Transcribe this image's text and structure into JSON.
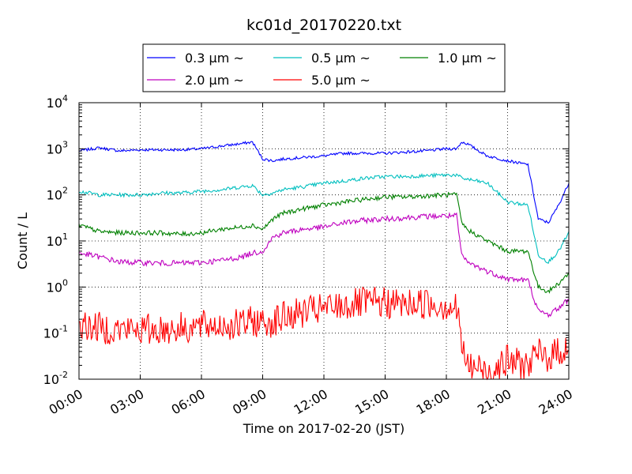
{
  "chart_data": {
    "type": "line",
    "title": "kc01d_20170220.txt",
    "xlabel": "Time on 2017-02-20 (JST)",
    "ylabel": "Count / L",
    "xlim": [
      "00:00",
      "24:00"
    ],
    "ylim": [
      0.01,
      10000
    ],
    "yscale": "log",
    "grid": true,
    "legend_position": "top-center",
    "x_ticks": [
      "00:00",
      "03:00",
      "06:00",
      "09:00",
      "12:00",
      "15:00",
      "18:00",
      "21:00",
      "24:00"
    ],
    "y_ticks": [
      {
        "base": "10",
        "exp": "-2",
        "value": 0.01
      },
      {
        "base": "10",
        "exp": "-1",
        "value": 0.1
      },
      {
        "base": "10",
        "exp": "0",
        "value": 1
      },
      {
        "base": "10",
        "exp": "1",
        "value": 10
      },
      {
        "base": "10",
        "exp": "2",
        "value": 100
      },
      {
        "base": "10",
        "exp": "3",
        "value": 1000
      },
      {
        "base": "10",
        "exp": "4",
        "value": 10000
      }
    ],
    "x": [
      "00:00",
      "01:00",
      "02:00",
      "03:00",
      "04:00",
      "05:00",
      "06:00",
      "07:00",
      "08:00",
      "08:30",
      "09:00",
      "09:30",
      "10:00",
      "11:00",
      "12:00",
      "13:00",
      "14:00",
      "15:00",
      "16:00",
      "17:00",
      "18:00",
      "18:30",
      "18:45",
      "19:00",
      "20:00",
      "21:00",
      "22:00",
      "22:30",
      "23:00",
      "23:30",
      "24:00"
    ],
    "series": [
      {
        "name": "0.3 µm ~",
        "color": "#0000ff",
        "values": [
          900,
          1050,
          900,
          950,
          950,
          950,
          1000,
          1150,
          1300,
          1400,
          600,
          550,
          600,
          650,
          700,
          800,
          800,
          800,
          850,
          900,
          1000,
          1000,
          1400,
          1300,
          700,
          550,
          450,
          30,
          25,
          60,
          180
        ]
      },
      {
        "name": "0.5 µm ~",
        "color": "#00bfbf",
        "values": [
          120,
          100,
          100,
          100,
          110,
          110,
          120,
          130,
          150,
          160,
          100,
          110,
          130,
          150,
          180,
          200,
          230,
          250,
          250,
          260,
          270,
          270,
          230,
          220,
          180,
          70,
          60,
          5,
          3.5,
          6,
          15
        ]
      },
      {
        "name": "1.0 µm ~",
        "color": "#008000",
        "values": [
          22,
          16,
          15,
          15,
          15,
          14,
          15,
          18,
          20,
          22,
          18,
          30,
          40,
          50,
          60,
          70,
          80,
          90,
          90,
          95,
          100,
          100,
          25,
          18,
          10,
          6,
          6,
          1,
          0.8,
          1.2,
          2
        ]
      },
      {
        "name": "2.0 µm ~",
        "color": "#bf00bf",
        "values": [
          5.5,
          4.5,
          3.5,
          3.4,
          3.3,
          3.3,
          3.4,
          3.8,
          4.5,
          5.5,
          6,
          12,
          15,
          18,
          20,
          25,
          28,
          30,
          32,
          34,
          35,
          35,
          5,
          3.5,
          2.2,
          1.5,
          1.4,
          0.3,
          0.25,
          0.35,
          0.55
        ]
      },
      {
        "name": "5.0 µm ~",
        "color": "#ff0000",
        "values": [
          0.15,
          0.13,
          0.12,
          0.12,
          0.12,
          0.13,
          0.14,
          0.15,
          0.15,
          0.18,
          0.17,
          0.18,
          0.22,
          0.28,
          0.33,
          0.4,
          0.45,
          0.45,
          0.42,
          0.45,
          0.4,
          0.35,
          0.06,
          0.02,
          0.015,
          0.025,
          0.02,
          0.035,
          0.03,
          0.04,
          0.05
        ]
      }
    ]
  }
}
